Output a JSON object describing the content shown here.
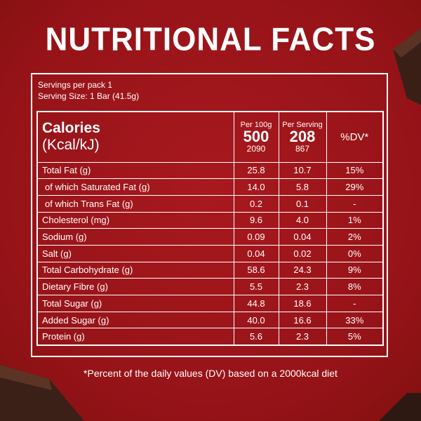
{
  "title": "NUTRITIONAL FACTS",
  "servings": [
    "Servings per pack 1",
    "Serving Size: 1 Bar (41.5g)"
  ],
  "table": {
    "header": {
      "label": [
        "Calories",
        "(Kcal/kJ)"
      ],
      "per100g": [
        "Per 100g",
        "500",
        "2090"
      ],
      "perServing": [
        "Per Serving",
        "208",
        "867"
      ],
      "dv": "%DV*"
    },
    "rows": [
      [
        "Total Fat (g)",
        "25.8",
        "10.7",
        "15%"
      ],
      [
        "of which Saturated Fat (g)",
        "14.0",
        "5.8",
        "29%"
      ],
      [
        "of which Trans Fat (g)",
        "0.2",
        "0.1",
        "-"
      ],
      [
        "Cholesterol (mg)",
        "9.6",
        "4.0",
        "1%"
      ],
      [
        "Sodium (g)",
        "0.09",
        "0.04",
        "2%"
      ],
      [
        "Salt (g)",
        "0.04",
        "0.02",
        "0%"
      ],
      [
        "Total Carbohydrate (g)",
        "58.6",
        "24.3",
        "9%"
      ],
      [
        "Dietary Fibre (g)",
        "5.5",
        "2.3",
        "8%"
      ],
      [
        "Total Sugar (g)",
        "44.8",
        "18.6",
        "-"
      ],
      [
        "Added Sugar (g)",
        "40.0",
        "16.6",
        "33%"
      ],
      [
        "Protein (g)",
        "5.6",
        "2.3",
        "5%"
      ]
    ]
  },
  "footnote": "*Percent of the daily values (DV) based on a 2000kcal diet"
}
